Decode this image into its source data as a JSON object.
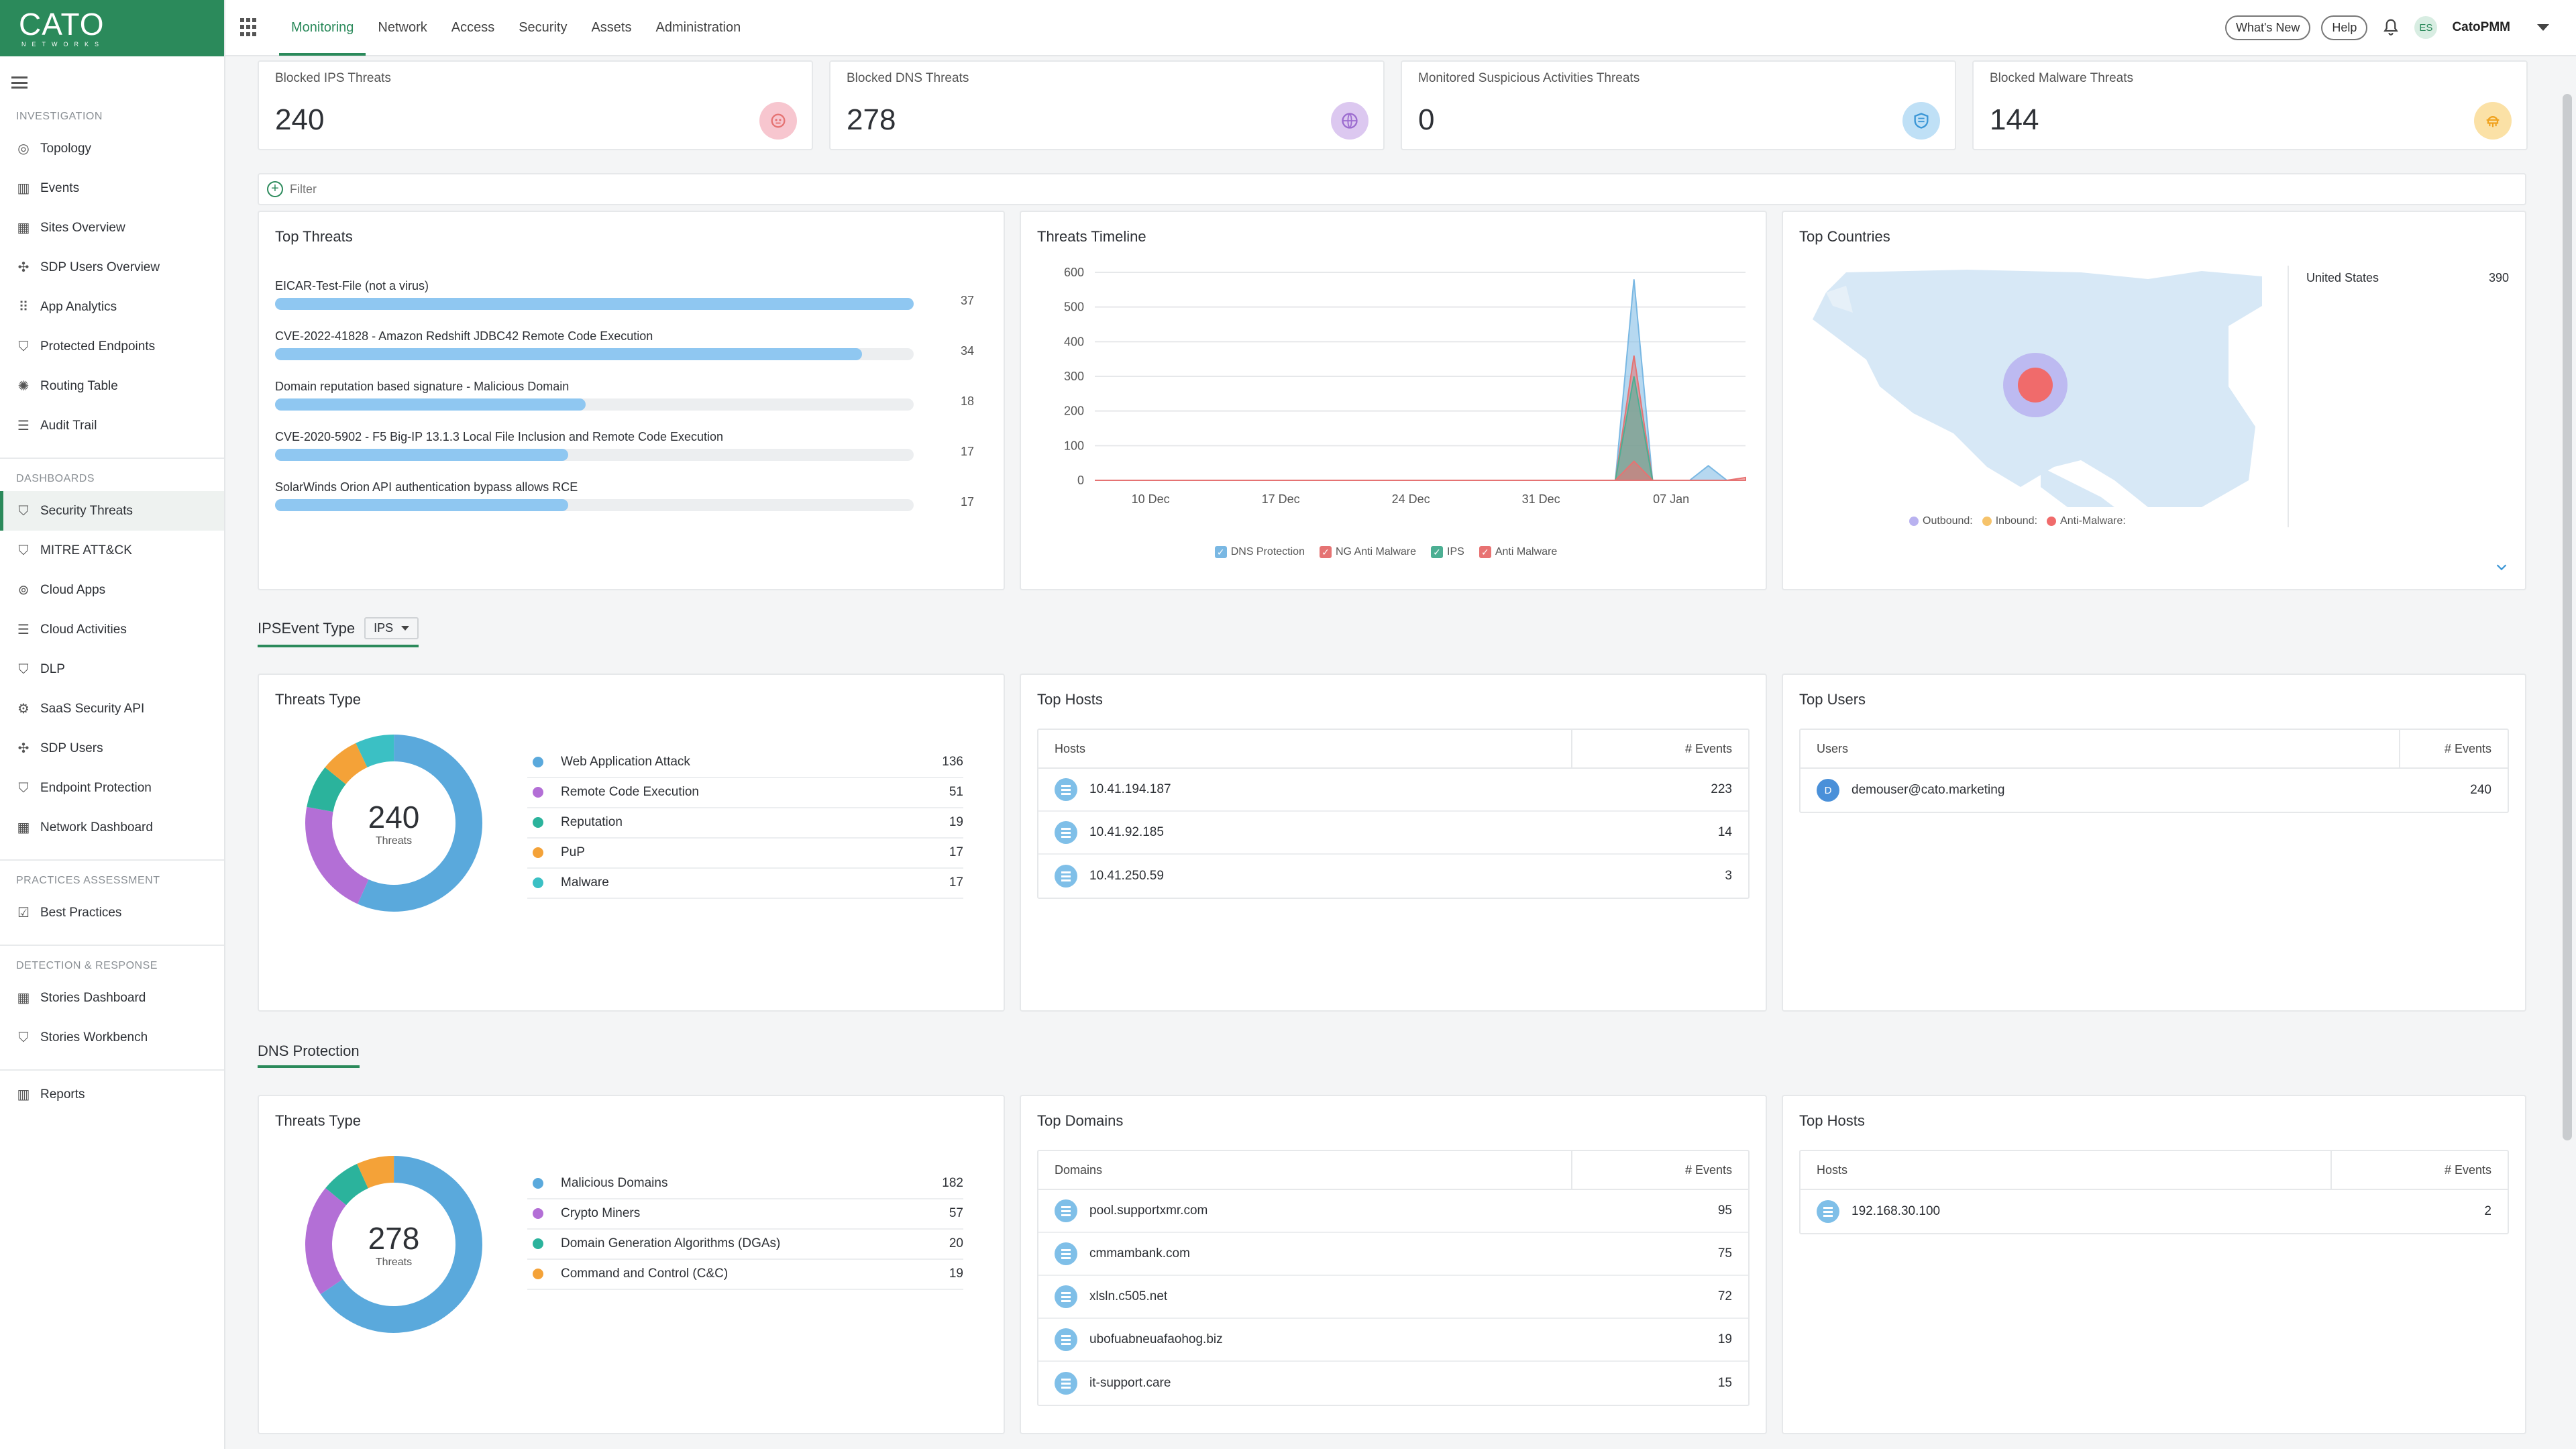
{
  "logo": {
    "line1": "CATO",
    "line2": "NETWORKS"
  },
  "sidebar": {
    "sections": [
      {
        "title": "INVESTIGATION",
        "items": [
          {
            "label": "Topology",
            "icon": "topology-icon"
          },
          {
            "label": "Events",
            "icon": "events-icon"
          },
          {
            "label": "Sites Overview",
            "icon": "sites-icon"
          },
          {
            "label": "SDP Users Overview",
            "icon": "sdp-users-icon"
          },
          {
            "label": "App Analytics",
            "icon": "app-analytics-icon"
          },
          {
            "label": "Protected Endpoints",
            "icon": "shield-icon"
          },
          {
            "label": "Routing Table",
            "icon": "routing-icon"
          },
          {
            "label": "Audit Trail",
            "icon": "audit-icon"
          }
        ]
      },
      {
        "title": "DASHBOARDS",
        "items": [
          {
            "label": "Security Threats",
            "icon": "shield-icon",
            "active": true
          },
          {
            "label": "MITRE ATT&CK",
            "icon": "shield-icon"
          },
          {
            "label": "Cloud Apps",
            "icon": "cloud-apps-icon"
          },
          {
            "label": "Cloud Activities",
            "icon": "list-icon"
          },
          {
            "label": "DLP",
            "icon": "shield-icon"
          },
          {
            "label": "SaaS Security API",
            "icon": "gear-icon"
          },
          {
            "label": "SDP Users",
            "icon": "sdp-users-icon"
          },
          {
            "label": "Endpoint Protection",
            "icon": "shield-icon"
          },
          {
            "label": "Network Dashboard",
            "icon": "grid-icon"
          }
        ]
      },
      {
        "title": "PRACTICES ASSESSMENT",
        "items": [
          {
            "label": "Best Practices",
            "icon": "checkbox-icon"
          }
        ]
      },
      {
        "title": "DETECTION & RESPONSE",
        "items": [
          {
            "label": "Stories Dashboard",
            "icon": "grid-icon"
          },
          {
            "label": "Stories Workbench",
            "icon": "shield-icon"
          }
        ]
      }
    ],
    "footer_item": {
      "label": "Reports",
      "icon": "reports-icon"
    }
  },
  "topbar": {
    "tabs": [
      "Monitoring",
      "Network",
      "Access",
      "Security",
      "Assets",
      "Administration"
    ],
    "active_tab": "Monitoring",
    "whats_new": "What's New",
    "help": "Help",
    "avatar_initials": "ES",
    "user_name": "CatoPMM"
  },
  "stats": [
    {
      "label": "Blocked IPS Threats",
      "value": "240",
      "icon": "ips-icon",
      "color": "#f7c6cf",
      "icon_color": "#e57373"
    },
    {
      "label": "Blocked DNS Threats",
      "value": "278",
      "icon": "globe-icon",
      "color": "#dcc8f0",
      "icon_color": "#9c6ccf"
    },
    {
      "label": "Monitored Suspicious Activities Threats",
      "value": "0",
      "icon": "shield-icon",
      "color": "#bfe0f6",
      "icon_color": "#3a96d6"
    },
    {
      "label": "Blocked Malware Threats",
      "value": "144",
      "icon": "bug-icon",
      "color": "#fbe1a6",
      "icon_color": "#f0a21e"
    }
  ],
  "filter": {
    "label": "Filter"
  },
  "top_threats": {
    "title": "Top Threats",
    "items": [
      {
        "name": "EICAR-Test-File (not a virus)",
        "count": 37
      },
      {
        "name": "CVE-2022-41828 - Amazon Redshift JDBC42 Remote Code Execution",
        "count": 34
      },
      {
        "name": "Domain reputation based signature - Malicious Domain",
        "count": 18
      },
      {
        "name": "CVE-2020-5902 - F5 Big-IP 13.1.3 Local File Inclusion and Remote Code Execution",
        "count": 17
      },
      {
        "name": "SolarWinds Orion API authentication bypass allows RCE",
        "count": 17
      }
    ],
    "max": 37
  },
  "chart_data": {
    "type": "area",
    "title": "Threats Timeline",
    "x_ticks": [
      "10 Dec",
      "17 Dec",
      "24 Dec",
      "31 Dec",
      "07 Jan"
    ],
    "y_ticks": [
      0,
      100,
      200,
      300,
      400,
      500,
      600
    ],
    "ylim": [
      0,
      600
    ],
    "x_start": "2022-12-07",
    "x_end": "2023-01-11",
    "series": [
      {
        "name": "DNS Protection",
        "color": "#7ab8e3",
        "points": [
          [
            "2022-12-07",
            0
          ],
          [
            "2023-01-04",
            0
          ],
          [
            "2023-01-05",
            580
          ],
          [
            "2023-01-06",
            0
          ],
          [
            "2023-01-08",
            0
          ],
          [
            "2023-01-09",
            42
          ],
          [
            "2023-01-10",
            0
          ],
          [
            "2023-01-11",
            0
          ]
        ]
      },
      {
        "name": "NG Anti Malware",
        "color": "#e57373",
        "points": [
          [
            "2022-12-07",
            0
          ],
          [
            "2023-01-04",
            0
          ],
          [
            "2023-01-05",
            360
          ],
          [
            "2023-01-06",
            0
          ],
          [
            "2023-01-11",
            0
          ]
        ]
      },
      {
        "name": "IPS",
        "color": "#4caf93",
        "points": [
          [
            "2022-12-07",
            0
          ],
          [
            "2023-01-04",
            0
          ],
          [
            "2023-01-05",
            300
          ],
          [
            "2023-01-06",
            0
          ],
          [
            "2023-01-11",
            0
          ]
        ]
      },
      {
        "name": "Anti Malware",
        "color": "#e87272",
        "points": [
          [
            "2022-12-07",
            0
          ],
          [
            "2023-01-04",
            0
          ],
          [
            "2023-01-05",
            55
          ],
          [
            "2023-01-06",
            0
          ],
          [
            "2023-01-10",
            0
          ],
          [
            "2023-01-11",
            8
          ]
        ]
      }
    ],
    "legend": [
      "DNS Protection",
      "NG Anti Malware",
      "IPS",
      "Anti Malware"
    ],
    "legend_placement": "bottom"
  },
  "top_countries": {
    "title": "Top Countries",
    "rows": [
      {
        "country": "United States",
        "value": "390"
      }
    ],
    "legend": [
      "Outbound:",
      "Inbound:",
      "Anti-Malware:"
    ],
    "legend_colors": [
      "#b9b2f0",
      "#f6c36b",
      "#f06b6b"
    ]
  },
  "ips_section": {
    "title": "IPSEvent Type",
    "dropdown": "IPS"
  },
  "ips_threats_type": {
    "title": "Threats Type",
    "total": "240",
    "center_label": "Threats",
    "items": [
      {
        "label": "Web Application Attack",
        "value": 136,
        "color": "#5aa9dc"
      },
      {
        "label": "Remote Code Execution",
        "value": 51,
        "color": "#b36fd6"
      },
      {
        "label": "Reputation",
        "value": 19,
        "color": "#2bb39c"
      },
      {
        "label": "PuP",
        "value": 17,
        "color": "#f4a238"
      },
      {
        "label": "Malware",
        "value": 17,
        "color": "#3bc0c4"
      }
    ]
  },
  "ips_top_hosts": {
    "title": "Top Hosts",
    "col1": "Hosts",
    "col2": "# Events",
    "rows": [
      {
        "name": "10.41.194.187",
        "value": "223"
      },
      {
        "name": "10.41.92.185",
        "value": "14"
      },
      {
        "name": "10.41.250.59",
        "value": "3"
      }
    ]
  },
  "ips_top_users": {
    "title": "Top Users",
    "col1": "Users",
    "col2": "# Events",
    "rows": [
      {
        "initial": "D",
        "name": "demouser@cato.marketing",
        "value": "240"
      }
    ]
  },
  "dns_section": {
    "title": "DNS Protection"
  },
  "dns_threats_type": {
    "title": "Threats Type",
    "total": "278",
    "center_label": "Threats",
    "items": [
      {
        "label": "Malicious Domains",
        "value": 182,
        "color": "#5aa9dc"
      },
      {
        "label": "Crypto Miners",
        "value": 57,
        "color": "#b36fd6"
      },
      {
        "label": "Domain Generation Algorithms (DGAs)",
        "value": 20,
        "color": "#2bb39c"
      },
      {
        "label": "Command and Control (C&C)",
        "value": 19,
        "color": "#f4a238"
      }
    ]
  },
  "dns_top_domains": {
    "title": "Top Domains",
    "col1": "Domains",
    "col2": "# Events",
    "rows": [
      {
        "name": "pool.supportxmr.com",
        "value": "95"
      },
      {
        "name": "cmmambank.com",
        "value": "75"
      },
      {
        "name": "xlsln.c505.net",
        "value": "72"
      },
      {
        "name": "ubofuabneuafaohog.biz",
        "value": "19"
      },
      {
        "name": "it-support.care",
        "value": "15"
      }
    ]
  },
  "dns_top_hosts": {
    "title": "Top Hosts",
    "col1": "Hosts",
    "col2": "# Events",
    "rows": [
      {
        "name": "192.168.30.100",
        "value": "2"
      }
    ]
  }
}
